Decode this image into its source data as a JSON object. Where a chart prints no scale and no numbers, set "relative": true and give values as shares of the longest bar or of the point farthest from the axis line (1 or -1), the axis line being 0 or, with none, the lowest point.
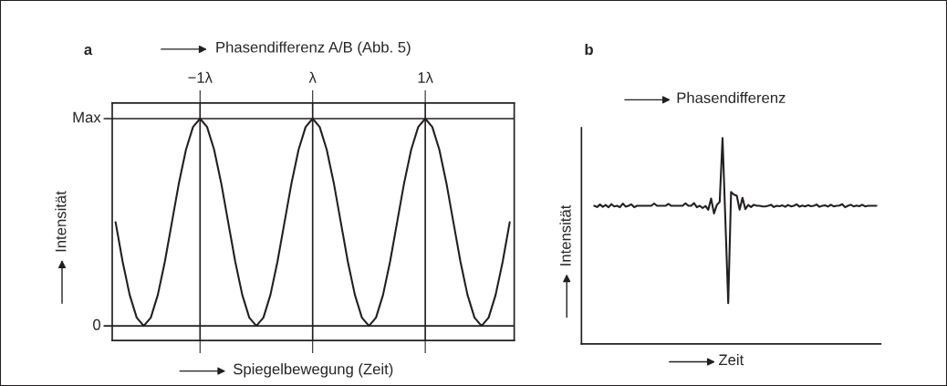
{
  "chart_data": [
    {
      "type": "line",
      "title": "a",
      "subtitle": "Phasendifferenz A/B (Abb. 5)",
      "xlabel": "Spiegelbewegung (Zeit)",
      "ylabel": "Intensität",
      "x": [
        -1.75,
        -1.6875,
        -1.625,
        -1.5625,
        -1.5,
        -1.4375,
        -1.375,
        -1.3125,
        -1.25,
        -1.1875,
        -1.125,
        -1.0625,
        -1,
        -0.9375,
        -0.875,
        -0.8125,
        -0.75,
        -0.6875,
        -0.625,
        -0.5625,
        -0.5,
        -0.4375,
        -0.375,
        -0.3125,
        -0.25,
        -0.1875,
        -0.125,
        -0.0625,
        0,
        0.0625,
        0.125,
        0.1875,
        0.25,
        0.3125,
        0.375,
        0.4375,
        0.5,
        0.5625,
        0.625,
        0.6875,
        0.75,
        0.8125,
        0.875,
        0.9375,
        1,
        1.0625,
        1.125,
        1.1875,
        1.25,
        1.3125,
        1.375,
        1.4375,
        1.5,
        1.5625,
        1.625,
        1.6875,
        1.75
      ],
      "series": [
        {
          "color": "#231f20",
          "values": [
            0.5,
            0.31,
            0.15,
            0.04,
            0,
            0.04,
            0.15,
            0.31,
            0.5,
            0.69,
            0.85,
            0.96,
            1,
            0.96,
            0.85,
            0.69,
            0.5,
            0.31,
            0.15,
            0.04,
            0,
            0.04,
            0.15,
            0.31,
            0.5,
            0.69,
            0.85,
            0.96,
            1,
            0.96,
            0.85,
            0.69,
            0.5,
            0.31,
            0.15,
            0.04,
            0,
            0.04,
            0.15,
            0.31,
            0.5,
            0.69,
            0.85,
            0.96,
            1,
            0.96,
            0.85,
            0.69,
            0.5,
            0.31,
            0.15,
            0.04,
            0,
            0.04,
            0.15,
            0.31,
            0.5
          ]
        }
      ],
      "xlim": [
        -1.78,
        1.79
      ],
      "xticks": [
        {
          "value": -1,
          "label": "−1λ"
        },
        {
          "value": 0,
          "label": "λ"
        },
        {
          "value": 1,
          "label": "1λ"
        }
      ],
      "relative": true,
      "ref_lines": [
        {
          "axis": "y",
          "value": 0,
          "label": "0"
        },
        {
          "axis": "y",
          "value": 1,
          "label": "Max"
        }
      ],
      "grid": "x",
      "legend": false,
      "line_style": "solid",
      "marker": "none"
    },
    {
      "type": "line",
      "title": "b",
      "subtitle": "Phasendifferenz",
      "xlabel": "Zeit",
      "ylabel": "Intensität",
      "relative": true,
      "categories": [
        null,
        null,
        null,
        null,
        null,
        null,
        null,
        null,
        null,
        null,
        null,
        null,
        null,
        null,
        null,
        null,
        null,
        null,
        null,
        null,
        null,
        null,
        null,
        null,
        null,
        null,
        null,
        null,
        null,
        null,
        null,
        null,
        null,
        null,
        null,
        null,
        null,
        null,
        null,
        null,
        null,
        null,
        null,
        null,
        null,
        null,
        null,
        null,
        null,
        null,
        null,
        null,
        null,
        null,
        null,
        null,
        null,
        null,
        null,
        null,
        null,
        null,
        null,
        null,
        null,
        null,
        null,
        null,
        null,
        null,
        null,
        null,
        null,
        null,
        null,
        null,
        null,
        null,
        null,
        null,
        null,
        null,
        null,
        null,
        null,
        null,
        null,
        null,
        null,
        null,
        null,
        null,
        null,
        null,
        null,
        null,
        null,
        null,
        null,
        null
      ],
      "series": [
        {
          "color": "#231f20",
          "values": [
            0.671,
            0.665,
            0.677,
            0.666,
            0.675,
            0.664,
            0.679,
            0.668,
            0.671,
            0.664,
            0.682,
            0.667,
            0.671,
            0.678,
            0.664,
            0.671,
            0.671,
            0.671,
            0.671,
            0.671,
            0.671,
            0.682,
            0.671,
            0.671,
            0.671,
            0.671,
            0.68,
            0.671,
            0.671,
            0.671,
            0.671,
            0.671,
            0.683,
            0.671,
            0.671,
            0.684,
            0.664,
            0.671,
            0.66,
            0.67,
            0.652,
            0.706,
            0.634,
            0.675,
            0.69,
            1,
            0.6,
            0.198,
            0.738,
            0.725,
            0.72,
            0.652,
            0.71,
            0.655,
            0.675,
            0.665,
            0.676,
            0.671,
            0.671,
            0.668,
            0.668,
            0.671,
            0.676,
            0.665,
            0.671,
            0.669,
            0.673,
            0.666,
            0.675,
            0.668,
            0.671,
            0.678,
            0.667,
            0.672,
            0.668,
            0.674,
            0.669,
            0.671,
            0.677,
            0.666,
            0.671,
            0.673,
            0.667,
            0.676,
            0.668,
            0.671,
            0.672,
            0.679,
            0.664,
            0.671,
            0.676,
            0.668,
            0.672,
            0.669,
            0.676,
            0.668,
            0.671,
            0.671,
            0.671,
            0.671
          ]
        }
      ],
      "grid": false,
      "legend": false,
      "line_style": "solid",
      "marker": "none"
    }
  ]
}
